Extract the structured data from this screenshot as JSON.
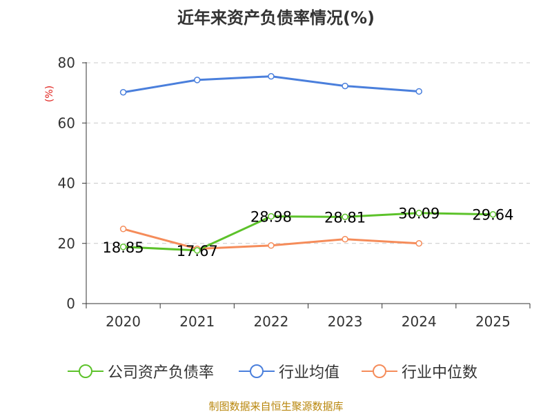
{
  "chart_data": {
    "type": "line",
    "title": "近年来资产负债率情况(%)",
    "ylabel": "(%)",
    "categories": [
      "2020",
      "2021",
      "2022",
      "2023",
      "2024",
      "2025"
    ],
    "ylim": [
      0,
      80
    ],
    "yticks": [
      0,
      20,
      40,
      60,
      80
    ],
    "grid": true,
    "legend_position": "bottom",
    "series": [
      {
        "name": "公司资产负债率",
        "color": "#5cc22a",
        "values": [
          18.85,
          17.67,
          28.98,
          28.81,
          30.09,
          29.64
        ],
        "labels": [
          "18.85",
          "17.67",
          "28.98",
          "28.81",
          "30.09",
          "29.64"
        ]
      },
      {
        "name": "行业均值",
        "color": "#4a7fdc",
        "values": [
          70.2,
          74.3,
          75.5,
          72.3,
          70.5,
          null
        ]
      },
      {
        "name": "行业中位数",
        "color": "#f58c5a",
        "values": [
          24.8,
          18.2,
          19.3,
          21.4,
          20.0,
          null
        ]
      }
    ]
  },
  "source": "制图数据来自恒生聚源数据库"
}
